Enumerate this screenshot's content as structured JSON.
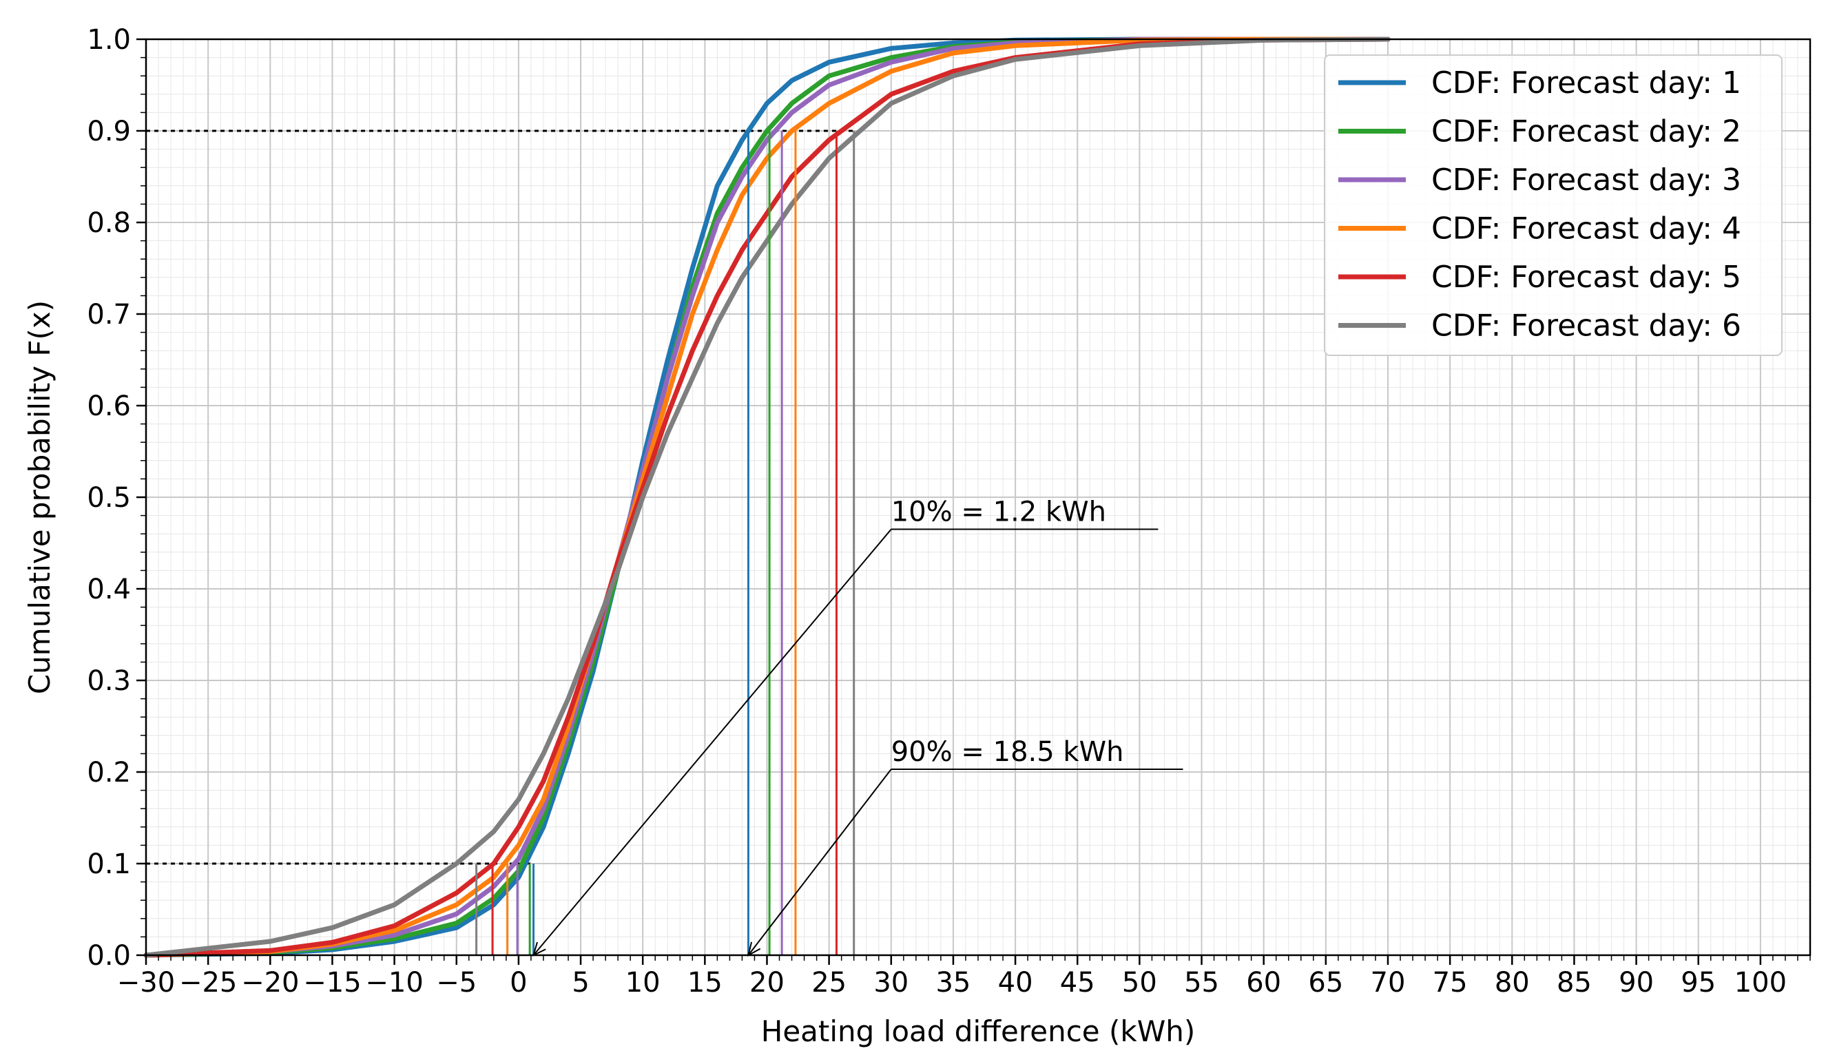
{
  "chart_data": {
    "type": "line",
    "title": "",
    "xlabel": "Heating load difference (kWh)",
    "ylabel": "Cumulative probability F(x)",
    "xlim": [
      -30,
      104
    ],
    "ylim": [
      0,
      1
    ],
    "xticks": [
      -30,
      -25,
      -20,
      -15,
      -10,
      -5,
      0,
      5,
      10,
      15,
      20,
      25,
      30,
      35,
      40,
      45,
      50,
      55,
      60,
      65,
      70,
      75,
      80,
      85,
      90,
      95,
      100
    ],
    "xtick_labels": [
      "−30",
      "−25",
      "−20",
      "−15",
      "−10",
      "−5",
      "0",
      "5",
      "10",
      "15",
      "20",
      "25",
      "30",
      "35",
      "40",
      "45",
      "50",
      "55",
      "60",
      "65",
      "70",
      "75",
      "80",
      "85",
      "90",
      "95",
      "100"
    ],
    "yticks": [
      0,
      0.1,
      0.2,
      0.3,
      0.4,
      0.5,
      0.6,
      0.7,
      0.8,
      0.9,
      1.0
    ],
    "ytick_labels": [
      "0.0",
      "0.1",
      "0.2",
      "0.3",
      "0.4",
      "0.5",
      "0.6",
      "0.7",
      "0.8",
      "0.9",
      "1.0"
    ],
    "grid": true,
    "legend_position": "top-right",
    "series": [
      {
        "name": "CDF: Forecast day: 1",
        "color": "#1f77b4",
        "p10": 1.2,
        "p90": 18.5,
        "x": [
          -30,
          -20,
          -15,
          -10,
          -5,
          -2,
          0,
          2,
          4,
          6,
          8,
          10,
          12,
          14,
          16,
          18,
          20,
          22,
          25,
          30,
          35,
          40,
          50,
          60,
          70
        ],
        "y": [
          0,
          0.002,
          0.006,
          0.015,
          0.03,
          0.055,
          0.085,
          0.14,
          0.22,
          0.31,
          0.42,
          0.54,
          0.65,
          0.75,
          0.84,
          0.89,
          0.93,
          0.955,
          0.975,
          0.99,
          0.996,
          0.999,
          1,
          1,
          1
        ]
      },
      {
        "name": "CDF: Forecast day: 2",
        "color": "#2ca02c",
        "p10": 0.9,
        "p90": 20.2,
        "x": [
          -30,
          -20,
          -15,
          -10,
          -5,
          -2,
          0,
          2,
          4,
          6,
          8,
          10,
          12,
          14,
          16,
          18,
          20,
          22,
          25,
          30,
          35,
          40,
          50,
          60,
          70
        ],
        "y": [
          0,
          0.003,
          0.008,
          0.018,
          0.035,
          0.062,
          0.092,
          0.15,
          0.23,
          0.32,
          0.42,
          0.53,
          0.63,
          0.73,
          0.81,
          0.86,
          0.9,
          0.93,
          0.96,
          0.98,
          0.992,
          0.997,
          1,
          1,
          1
        ]
      },
      {
        "name": "CDF: Forecast day: 3",
        "color": "#9467bd",
        "p10": -0.1,
        "p90": 21.2,
        "x": [
          -30,
          -20,
          -15,
          -10,
          -5,
          -2,
          0,
          2,
          4,
          6,
          8,
          10,
          12,
          14,
          16,
          18,
          20,
          22,
          25,
          30,
          35,
          40,
          50,
          60,
          70
        ],
        "y": [
          0,
          0.004,
          0.01,
          0.022,
          0.045,
          0.075,
          0.105,
          0.16,
          0.24,
          0.33,
          0.43,
          0.53,
          0.63,
          0.72,
          0.8,
          0.85,
          0.89,
          0.92,
          0.95,
          0.975,
          0.99,
          0.996,
          1,
          1,
          1
        ]
      },
      {
        "name": "CDF: Forecast day: 4",
        "color": "#ff7f0e",
        "p10": -0.9,
        "p90": 22.3,
        "x": [
          -30,
          -20,
          -15,
          -10,
          -5,
          -2,
          0,
          2,
          4,
          6,
          8,
          10,
          12,
          14,
          16,
          18,
          20,
          22,
          25,
          30,
          35,
          40,
          50,
          60,
          70
        ],
        "y": [
          0,
          0.004,
          0.012,
          0.027,
          0.055,
          0.085,
          0.12,
          0.17,
          0.25,
          0.34,
          0.43,
          0.52,
          0.61,
          0.7,
          0.77,
          0.83,
          0.87,
          0.9,
          0.93,
          0.965,
          0.985,
          0.993,
          0.999,
          1,
          1
        ]
      },
      {
        "name": "CDF: Forecast day: 5",
        "color": "#d62728",
        "p10": -2.1,
        "p90": 25.6,
        "x": [
          -30,
          -20,
          -15,
          -10,
          -5,
          -2,
          0,
          2,
          4,
          6,
          8,
          10,
          12,
          14,
          16,
          18,
          20,
          22,
          25,
          30,
          35,
          40,
          50,
          60,
          70
        ],
        "y": [
          0,
          0.005,
          0.014,
          0.032,
          0.068,
          0.1,
          0.14,
          0.19,
          0.26,
          0.34,
          0.43,
          0.51,
          0.59,
          0.66,
          0.72,
          0.77,
          0.81,
          0.85,
          0.89,
          0.94,
          0.965,
          0.98,
          0.995,
          0.999,
          1
        ]
      },
      {
        "name": "CDF: Forecast day: 6",
        "color": "#7f7f7f",
        "p10": -3.4,
        "p90": 27.0,
        "x": [
          -30,
          -20,
          -15,
          -10,
          -5,
          -2,
          0,
          2,
          4,
          6,
          8,
          10,
          12,
          14,
          16,
          18,
          20,
          22,
          25,
          30,
          35,
          40,
          50,
          60,
          70
        ],
        "y": [
          0,
          0.015,
          0.03,
          0.055,
          0.1,
          0.135,
          0.17,
          0.22,
          0.28,
          0.35,
          0.42,
          0.5,
          0.57,
          0.63,
          0.69,
          0.74,
          0.78,
          0.82,
          0.87,
          0.93,
          0.96,
          0.978,
          0.993,
          0.999,
          1
        ]
      }
    ],
    "reference_lines": [
      0.1,
      0.9
    ],
    "annotations": [
      {
        "text": "10% = 1.2 kWh",
        "point_x": 1.2,
        "point_y": 0,
        "text_x": 30,
        "text_y": 0.465,
        "text_end_x": 51.5
      },
      {
        "text": "90% = 18.5 kWh",
        "point_x": 18.5,
        "point_y": 0,
        "text_x": 30,
        "text_y": 0.203,
        "text_end_x": 53.5
      }
    ]
  }
}
